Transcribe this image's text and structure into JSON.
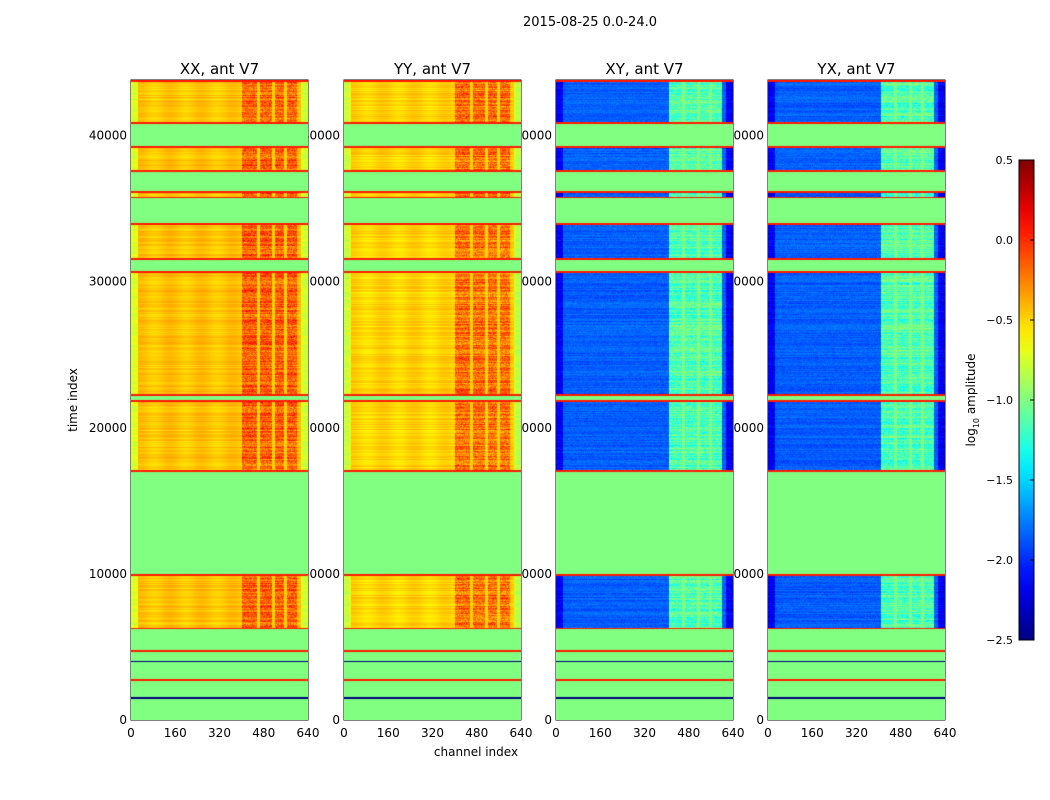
{
  "suptitle": "2015-08-25 0.0-24.0",
  "xlabel": "channel index",
  "ylabel": "time index",
  "chart_data": [
    {
      "type": "heatmap",
      "title": "XX, ant V7",
      "pol": "XX",
      "xlim": [
        0,
        640
      ],
      "ylim": [
        0,
        43800
      ],
      "xticks": [
        0,
        160,
        320,
        480,
        640
      ],
      "yticks": [
        0,
        10000,
        20000,
        30000,
        40000
      ],
      "base_level": -0.45,
      "band_level": -0.15,
      "band_channels": [
        400,
        600
      ]
    },
    {
      "type": "heatmap",
      "title": "YY, ant V7",
      "pol": "YY",
      "xlim": [
        0,
        640
      ],
      "ylim": [
        0,
        43800
      ],
      "xticks": [
        0,
        160,
        320,
        480,
        640
      ],
      "yticks": [
        0,
        10000,
        20000,
        30000,
        40000
      ],
      "base_level": -0.5,
      "band_level": -0.2,
      "band_channels": [
        400,
        600
      ]
    },
    {
      "type": "heatmap",
      "title": "XY, ant V7",
      "pol": "XY",
      "xlim": [
        0,
        640
      ],
      "ylim": [
        0,
        43800
      ],
      "xticks": [
        0,
        160,
        320,
        480,
        640
      ],
      "yticks": [
        0,
        10000,
        20000,
        30000,
        40000
      ],
      "base_level": -1.85,
      "band_level": -1.15,
      "band_channels": [
        410,
        600
      ]
    },
    {
      "type": "heatmap",
      "title": "YX, ant V7",
      "pol": "YX",
      "xlim": [
        0,
        640
      ],
      "ylim": [
        0,
        43800
      ],
      "xticks": [
        0,
        160,
        320,
        480,
        640
      ],
      "yticks": [
        0,
        10000,
        20000,
        30000,
        40000
      ],
      "base_level": -1.85,
      "band_level": -1.15,
      "band_channels": [
        410,
        600
      ]
    }
  ],
  "unflagged_time_ranges": [
    [
      6200,
      10000
    ],
    [
      17000,
      21900
    ],
    [
      22200,
      30700
    ],
    [
      31500,
      34000
    ],
    [
      35700,
      36200
    ],
    [
      37500,
      39300
    ],
    [
      40800,
      43800
    ]
  ],
  "flag_value": -1.0,
  "colorbar": {
    "label": "log10 amplitude",
    "label_main": "log",
    "label_sub": "10",
    "label_rest": " amplitude",
    "colormap": "jet",
    "range": [
      -2.5,
      0.5
    ],
    "ticks": [
      "0.5",
      "0.0",
      "−0.5",
      "−1.0",
      "−1.5",
      "−2.0",
      "−2.5"
    ],
    "tick_values": [
      0.5,
      0.0,
      -0.5,
      -1.0,
      -1.5,
      -2.0,
      -2.5
    ]
  }
}
